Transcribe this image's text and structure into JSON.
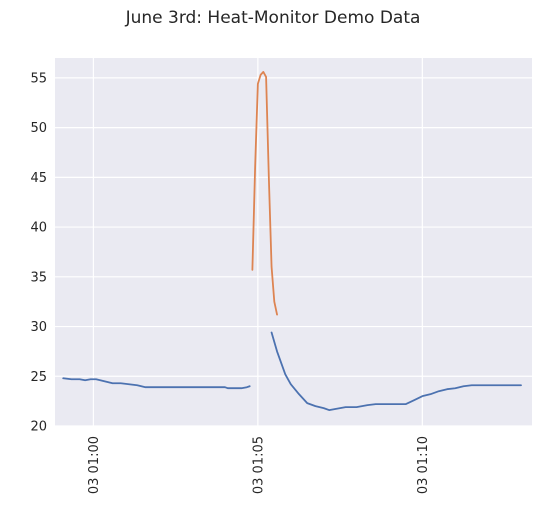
{
  "chart_data": {
    "type": "line",
    "title": "June 3rd: Heat-Monitor Demo Data",
    "xlabel": "",
    "ylabel": "",
    "xlim": [
      "03 00:58:50",
      "03 01:13:20"
    ],
    "ylim": [
      20,
      57
    ],
    "grid": true,
    "legend": "none",
    "x_ticks": [
      {
        "value": "03 01:00:00",
        "label": "03 01:00"
      },
      {
        "value": "03 01:05:00",
        "label": "03 01:05"
      },
      {
        "value": "03 01:10:00",
        "label": "03 01:10"
      }
    ],
    "y_ticks": [
      20,
      25,
      30,
      35,
      40,
      45,
      50,
      55
    ],
    "series": [
      {
        "color": "#4c72b0",
        "points": [
          [
            "03 00:59:05",
            24.8
          ],
          [
            "03 00:59:20",
            24.7
          ],
          [
            "03 00:59:35",
            24.7
          ],
          [
            "03 00:59:45",
            24.6
          ],
          [
            "03 00:59:55",
            24.7
          ],
          [
            "03 01:00:05",
            24.7
          ],
          [
            "03 01:00:20",
            24.5
          ],
          [
            "03 01:00:35",
            24.3
          ],
          [
            "03 01:00:50",
            24.3
          ],
          [
            "03 01:01:05",
            24.2
          ],
          [
            "03 01:01:20",
            24.1
          ],
          [
            "03 01:01:35",
            23.9
          ],
          [
            "03 01:02:00",
            23.9
          ],
          [
            "03 01:03:00",
            23.9
          ],
          [
            "03 01:04:00",
            23.9
          ],
          [
            "03 01:04:05",
            23.8
          ],
          [
            "03 01:04:30",
            23.8
          ],
          [
            "03 01:04:40",
            23.9
          ],
          [
            "03 01:04:45",
            24.0
          ]
        ]
      },
      {
        "color": "#dd8452",
        "points": [
          [
            "03 01:04:50",
            35.7
          ],
          [
            "03 01:04:55",
            46.0
          ],
          [
            "03 01:05:00",
            54.4
          ],
          [
            "03 01:05:05",
            55.3
          ],
          [
            "03 01:05:10",
            55.6
          ],
          [
            "03 01:05:15",
            55.1
          ],
          [
            "03 01:05:20",
            45.0
          ],
          [
            "03 01:05:25",
            36.0
          ],
          [
            "03 01:05:30",
            32.5
          ],
          [
            "03 01:05:35",
            31.2
          ]
        ]
      },
      {
        "color": "#4c72b0",
        "points": [
          [
            "03 01:05:25",
            29.4
          ],
          [
            "03 01:05:35",
            27.5
          ],
          [
            "03 01:05:50",
            25.2
          ],
          [
            "03 01:06:00",
            24.2
          ],
          [
            "03 01:06:15",
            23.2
          ],
          [
            "03 01:06:30",
            22.3
          ],
          [
            "03 01:06:45",
            22.0
          ],
          [
            "03 01:07:00",
            21.8
          ],
          [
            "03 01:07:10",
            21.6
          ],
          [
            "03 01:07:20",
            21.7
          ],
          [
            "03 01:07:30",
            21.8
          ],
          [
            "03 01:07:40",
            21.9
          ],
          [
            "03 01:08:00",
            21.9
          ],
          [
            "03 01:08:10",
            22.0
          ],
          [
            "03 01:08:20",
            22.1
          ],
          [
            "03 01:08:35",
            22.2
          ],
          [
            "03 01:09:00",
            22.2
          ],
          [
            "03 01:09:30",
            22.2
          ],
          [
            "03 01:09:45",
            22.6
          ],
          [
            "03 01:10:00",
            23.0
          ],
          [
            "03 01:10:15",
            23.2
          ],
          [
            "03 01:10:30",
            23.5
          ],
          [
            "03 01:10:45",
            23.7
          ],
          [
            "03 01:11:00",
            23.8
          ],
          [
            "03 01:11:15",
            24.0
          ],
          [
            "03 01:11:30",
            24.1
          ],
          [
            "03 01:12:00",
            24.1
          ],
          [
            "03 01:13:00",
            24.1
          ]
        ]
      }
    ]
  }
}
